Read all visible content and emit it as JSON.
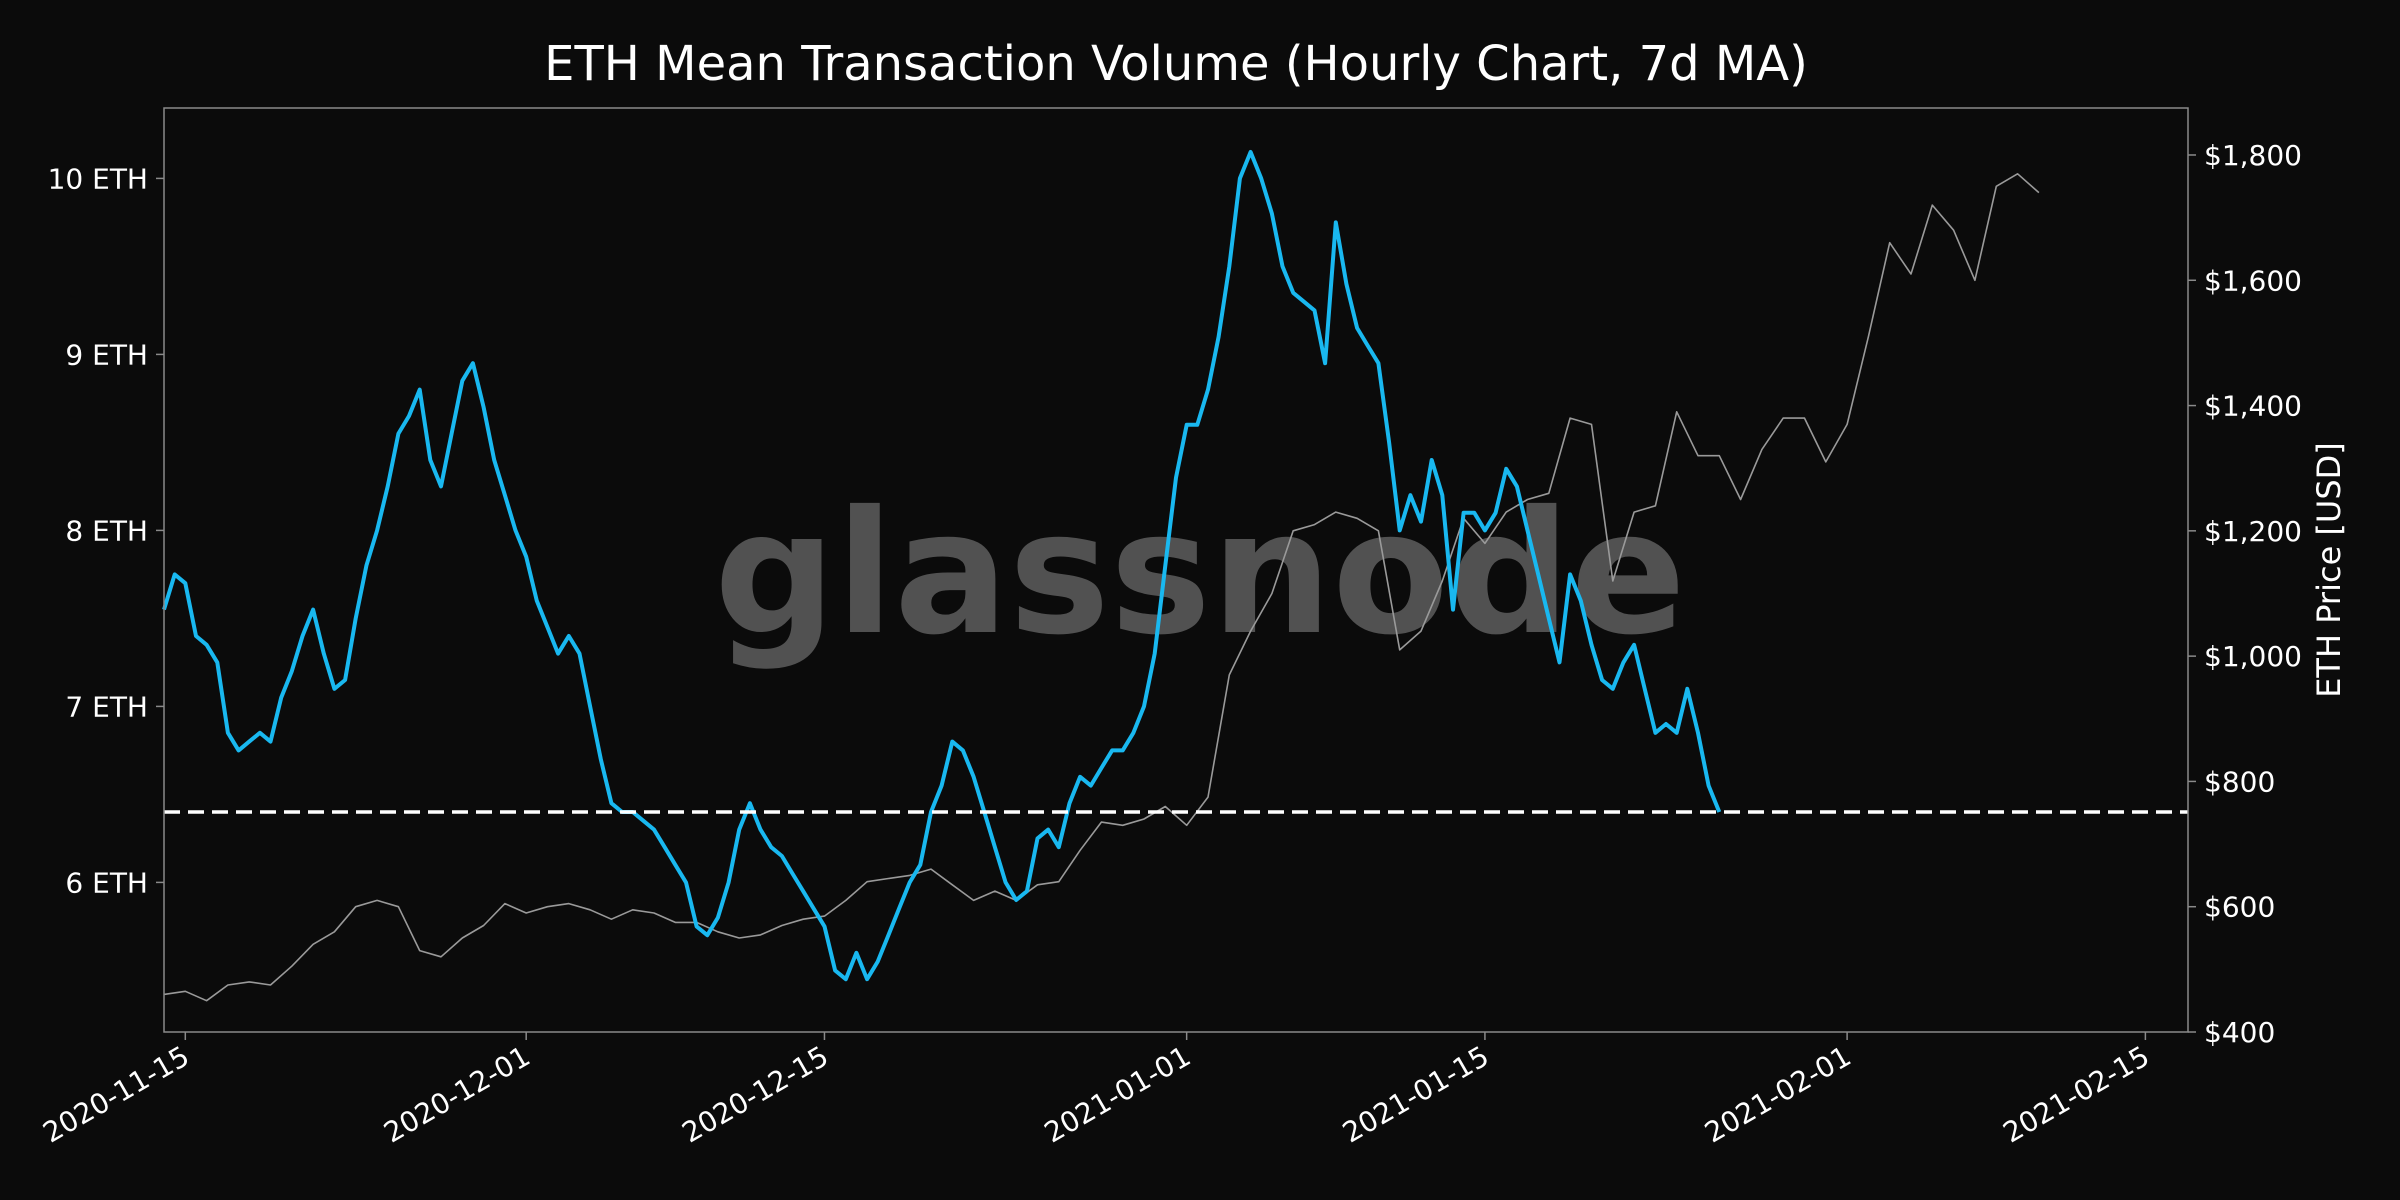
{
  "colors": {
    "background": "#0b0b0b",
    "frame": "#8a8a8a",
    "volume_line": "#19b8f0",
    "price_line": "#9a9a9a",
    "reference_line": "#ffffff",
    "watermark": "#6a6a6a"
  },
  "watermark": "glassnode",
  "chart_data": {
    "type": "line",
    "title": "ETH Mean Transaction Volume (Hourly Chart, 7d MA)",
    "xlabel": "",
    "ylabel_left": "",
    "ylabel_right": "ETH Price [USD]",
    "x_range": [
      "2020-11-14",
      "2021-02-17"
    ],
    "x_ticks": [
      "2020-11-15",
      "2020-12-01",
      "2020-12-15",
      "2021-01-01",
      "2021-01-15",
      "2021-02-01",
      "2021-02-15"
    ],
    "y_left_range": [
      5.15,
      10.4
    ],
    "y_left_ticks": [
      6,
      7,
      8,
      9,
      10
    ],
    "y_left_tick_labels": [
      "6 ETH",
      "7 ETH",
      "8 ETH",
      "9 ETH",
      "10 ETH"
    ],
    "y_right_range": [
      400,
      1875
    ],
    "y_right_ticks": [
      400,
      600,
      800,
      1000,
      1200,
      1400,
      1600,
      1800
    ],
    "y_right_tick_labels": [
      "$400",
      "$600",
      "$800",
      "$1,000",
      "$1,200",
      "$1,400",
      "$1,600",
      "$1,800"
    ],
    "grid": false,
    "reference_line": {
      "axis": "left",
      "value": 6.4,
      "style": "dashed"
    },
    "series": [
      {
        "axis": "left",
        "points": [
          [
            "2020-11-14",
            7.55
          ],
          [
            "2020-11-14T12",
            7.75
          ],
          [
            "2020-11-15",
            7.7
          ],
          [
            "2020-11-15T12",
            7.4
          ],
          [
            "2020-11-16",
            7.35
          ],
          [
            "2020-11-16T12",
            7.25
          ],
          [
            "2020-11-17",
            6.85
          ],
          [
            "2020-11-17T12",
            6.75
          ],
          [
            "2020-11-18",
            6.8
          ],
          [
            "2020-11-18T12",
            6.85
          ],
          [
            "2020-11-19",
            6.8
          ],
          [
            "2020-11-19T12",
            7.05
          ],
          [
            "2020-11-20",
            7.2
          ],
          [
            "2020-11-20T12",
            7.4
          ],
          [
            "2020-11-21",
            7.55
          ],
          [
            "2020-11-21T12",
            7.3
          ],
          [
            "2020-11-22",
            7.1
          ],
          [
            "2020-11-22T12",
            7.15
          ],
          [
            "2020-11-23",
            7.5
          ],
          [
            "2020-11-23T12",
            7.8
          ],
          [
            "2020-11-24",
            8.0
          ],
          [
            "2020-11-24T12",
            8.25
          ],
          [
            "2020-11-25",
            8.55
          ],
          [
            "2020-11-25T12",
            8.65
          ],
          [
            "2020-11-26",
            8.8
          ],
          [
            "2020-11-26T12",
            8.4
          ],
          [
            "2020-11-27",
            8.25
          ],
          [
            "2020-11-27T12",
            8.55
          ],
          [
            "2020-11-28",
            8.85
          ],
          [
            "2020-11-28T12",
            8.95
          ],
          [
            "2020-11-29",
            8.7
          ],
          [
            "2020-11-29T12",
            8.4
          ],
          [
            "2020-11-30",
            8.2
          ],
          [
            "2020-11-30T12",
            8.0
          ],
          [
            "2020-12-01",
            7.85
          ],
          [
            "2020-12-01T12",
            7.6
          ],
          [
            "2020-12-02",
            7.45
          ],
          [
            "2020-12-02T12",
            7.3
          ],
          [
            "2020-12-03",
            7.4
          ],
          [
            "2020-12-03T12",
            7.3
          ],
          [
            "2020-12-04",
            7.0
          ],
          [
            "2020-12-04T12",
            6.7
          ],
          [
            "2020-12-05",
            6.45
          ],
          [
            "2020-12-05T12",
            6.4
          ],
          [
            "2020-12-06",
            6.4
          ],
          [
            "2020-12-06T12",
            6.35
          ],
          [
            "2020-12-07",
            6.3
          ],
          [
            "2020-12-07T12",
            6.2
          ],
          [
            "2020-12-08",
            6.1
          ],
          [
            "2020-12-08T12",
            6.0
          ],
          [
            "2020-12-09",
            5.75
          ],
          [
            "2020-12-09T12",
            5.7
          ],
          [
            "2020-12-10",
            5.8
          ],
          [
            "2020-12-10T12",
            6.0
          ],
          [
            "2020-12-11",
            6.3
          ],
          [
            "2020-12-11T12",
            6.45
          ],
          [
            "2020-12-12",
            6.3
          ],
          [
            "2020-12-12T12",
            6.2
          ],
          [
            "2020-12-13",
            6.15
          ],
          [
            "2020-12-13T12",
            6.05
          ],
          [
            "2020-12-14",
            5.95
          ],
          [
            "2020-12-14T12",
            5.85
          ],
          [
            "2020-12-15",
            5.75
          ],
          [
            "2020-12-15T12",
            5.5
          ],
          [
            "2020-12-16",
            5.45
          ],
          [
            "2020-12-16T12",
            5.6
          ],
          [
            "2020-12-17",
            5.45
          ],
          [
            "2020-12-17T12",
            5.55
          ],
          [
            "2020-12-18",
            5.7
          ],
          [
            "2020-12-18T12",
            5.85
          ],
          [
            "2020-12-19",
            6.0
          ],
          [
            "2020-12-19T12",
            6.1
          ],
          [
            "2020-12-20",
            6.4
          ],
          [
            "2020-12-20T12",
            6.55
          ],
          [
            "2020-12-21",
            6.8
          ],
          [
            "2020-12-21T12",
            6.75
          ],
          [
            "2020-12-22",
            6.6
          ],
          [
            "2020-12-22T12",
            6.4
          ],
          [
            "2020-12-23",
            6.2
          ],
          [
            "2020-12-23T12",
            6.0
          ],
          [
            "2020-12-24",
            5.9
          ],
          [
            "2020-12-24T12",
            5.95
          ],
          [
            "2020-12-25",
            6.25
          ],
          [
            "2020-12-25T12",
            6.3
          ],
          [
            "2020-12-26",
            6.2
          ],
          [
            "2020-12-26T12",
            6.45
          ],
          [
            "2020-12-27",
            6.6
          ],
          [
            "2020-12-27T12",
            6.55
          ],
          [
            "2020-12-28",
            6.65
          ],
          [
            "2020-12-28T12",
            6.75
          ],
          [
            "2020-12-29",
            6.75
          ],
          [
            "2020-12-29T12",
            6.85
          ],
          [
            "2020-12-30",
            7.0
          ],
          [
            "2020-12-30T12",
            7.3
          ],
          [
            "2020-12-31",
            7.8
          ],
          [
            "2020-12-31T12",
            8.3
          ],
          [
            "2021-01-01",
            8.6
          ],
          [
            "2021-01-01T12",
            8.6
          ],
          [
            "2021-01-02",
            8.8
          ],
          [
            "2021-01-02T12",
            9.1
          ],
          [
            "2021-01-03",
            9.5
          ],
          [
            "2021-01-03T12",
            10.0
          ],
          [
            "2021-01-04",
            10.15
          ],
          [
            "2021-01-04T12",
            10.0
          ],
          [
            "2021-01-05",
            9.8
          ],
          [
            "2021-01-05T12",
            9.5
          ],
          [
            "2021-01-06",
            9.35
          ],
          [
            "2021-01-06T12",
            9.3
          ],
          [
            "2021-01-07",
            9.25
          ],
          [
            "2021-01-07T12",
            8.95
          ],
          [
            "2021-01-08",
            9.75
          ],
          [
            "2021-01-08T12",
            9.4
          ],
          [
            "2021-01-09",
            9.15
          ],
          [
            "2021-01-09T12",
            9.05
          ],
          [
            "2021-01-10",
            8.95
          ],
          [
            "2021-01-10T12",
            8.5
          ],
          [
            "2021-01-11",
            8.0
          ],
          [
            "2021-01-11T12",
            8.2
          ],
          [
            "2021-01-12",
            8.05
          ],
          [
            "2021-01-12T12",
            8.4
          ],
          [
            "2021-01-13",
            8.2
          ],
          [
            "2021-01-13T12",
            7.55
          ],
          [
            "2021-01-14",
            8.1
          ],
          [
            "2021-01-14T12",
            8.1
          ],
          [
            "2021-01-15",
            8.0
          ],
          [
            "2021-01-15T12",
            8.1
          ],
          [
            "2021-01-16",
            8.35
          ],
          [
            "2021-01-16T12",
            8.25
          ],
          [
            "2021-01-17",
            8.0
          ],
          [
            "2021-01-17T12",
            7.75
          ],
          [
            "2021-01-18",
            7.5
          ],
          [
            "2021-01-18T12",
            7.25
          ],
          [
            "2021-01-19",
            7.75
          ],
          [
            "2021-01-19T12",
            7.6
          ],
          [
            "2021-01-20",
            7.35
          ],
          [
            "2021-01-20T12",
            7.15
          ],
          [
            "2021-01-21",
            7.1
          ],
          [
            "2021-01-21T12",
            7.25
          ],
          [
            "2021-01-22",
            7.35
          ],
          [
            "2021-01-22T12",
            7.1
          ],
          [
            "2021-01-23",
            6.85
          ],
          [
            "2021-01-23T12",
            6.9
          ],
          [
            "2021-01-24",
            6.85
          ],
          [
            "2021-01-24T12",
            7.1
          ],
          [
            "2021-01-25",
            6.85
          ],
          [
            "2021-01-25T12",
            6.55
          ],
          [
            "2021-01-26",
            6.4
          ]
        ]
      },
      {
        "axis": "right",
        "points": [
          [
            "2020-11-14",
            460
          ],
          [
            "2020-11-15",
            465
          ],
          [
            "2020-11-16",
            450
          ],
          [
            "2020-11-17",
            475
          ],
          [
            "2020-11-18",
            480
          ],
          [
            "2020-11-19",
            475
          ],
          [
            "2020-11-20",
            505
          ],
          [
            "2020-11-21",
            540
          ],
          [
            "2020-11-22",
            560
          ],
          [
            "2020-11-23",
            600
          ],
          [
            "2020-11-24",
            610
          ],
          [
            "2020-11-25",
            600
          ],
          [
            "2020-11-26",
            530
          ],
          [
            "2020-11-27",
            520
          ],
          [
            "2020-11-28",
            550
          ],
          [
            "2020-11-29",
            570
          ],
          [
            "2020-11-30",
            605
          ],
          [
            "2020-12-01",
            590
          ],
          [
            "2020-12-02",
            600
          ],
          [
            "2020-12-03",
            605
          ],
          [
            "2020-12-04",
            595
          ],
          [
            "2020-12-05",
            580
          ],
          [
            "2020-12-06",
            595
          ],
          [
            "2020-12-07",
            590
          ],
          [
            "2020-12-08",
            575
          ],
          [
            "2020-12-09",
            575
          ],
          [
            "2020-12-10",
            560
          ],
          [
            "2020-12-11",
            550
          ],
          [
            "2020-12-12",
            555
          ],
          [
            "2020-12-13",
            570
          ],
          [
            "2020-12-14",
            580
          ],
          [
            "2020-12-15",
            585
          ],
          [
            "2020-12-16",
            610
          ],
          [
            "2020-12-17",
            640
          ],
          [
            "2020-12-18",
            645
          ],
          [
            "2020-12-19",
            650
          ],
          [
            "2020-12-20",
            660
          ],
          [
            "2020-12-21",
            635
          ],
          [
            "2020-12-22",
            610
          ],
          [
            "2020-12-23",
            625
          ],
          [
            "2020-12-24",
            610
          ],
          [
            "2020-12-25",
            635
          ],
          [
            "2020-12-26",
            640
          ],
          [
            "2020-12-27",
            690
          ],
          [
            "2020-12-28",
            735
          ],
          [
            "2020-12-29",
            730
          ],
          [
            "2020-12-30",
            740
          ],
          [
            "2020-12-31",
            760
          ],
          [
            "2021-01-01",
            730
          ],
          [
            "2021-01-02",
            775
          ],
          [
            "2021-01-03",
            970
          ],
          [
            "2021-01-04",
            1040
          ],
          [
            "2021-01-05",
            1100
          ],
          [
            "2021-01-06",
            1200
          ],
          [
            "2021-01-07",
            1210
          ],
          [
            "2021-01-08",
            1230
          ],
          [
            "2021-01-09",
            1220
          ],
          [
            "2021-01-10",
            1200
          ],
          [
            "2021-01-11",
            1010
          ],
          [
            "2021-01-12",
            1040
          ],
          [
            "2021-01-13",
            1120
          ],
          [
            "2021-01-14",
            1220
          ],
          [
            "2021-01-15",
            1180
          ],
          [
            "2021-01-16",
            1230
          ],
          [
            "2021-01-17",
            1250
          ],
          [
            "2021-01-18",
            1260
          ],
          [
            "2021-01-19",
            1380
          ],
          [
            "2021-01-20",
            1370
          ],
          [
            "2021-01-21",
            1120
          ],
          [
            "2021-01-22",
            1230
          ],
          [
            "2021-01-23",
            1240
          ],
          [
            "2021-01-24",
            1390
          ],
          [
            "2021-01-25",
            1320
          ],
          [
            "2021-01-26",
            1320
          ],
          [
            "2021-01-27",
            1250
          ],
          [
            "2021-01-28",
            1330
          ],
          [
            "2021-01-29",
            1380
          ],
          [
            "2021-01-30",
            1380
          ],
          [
            "2021-01-31",
            1310
          ],
          [
            "2021-02-01",
            1370
          ],
          [
            "2021-02-02",
            1510
          ],
          [
            "2021-02-03",
            1660
          ],
          [
            "2021-02-04",
            1610
          ],
          [
            "2021-02-05",
            1720
          ],
          [
            "2021-02-06",
            1680
          ],
          [
            "2021-02-07",
            1600
          ],
          [
            "2021-02-08",
            1750
          ],
          [
            "2021-02-09",
            1770
          ],
          [
            "2021-02-10",
            1740
          ]
        ]
      }
    ]
  }
}
